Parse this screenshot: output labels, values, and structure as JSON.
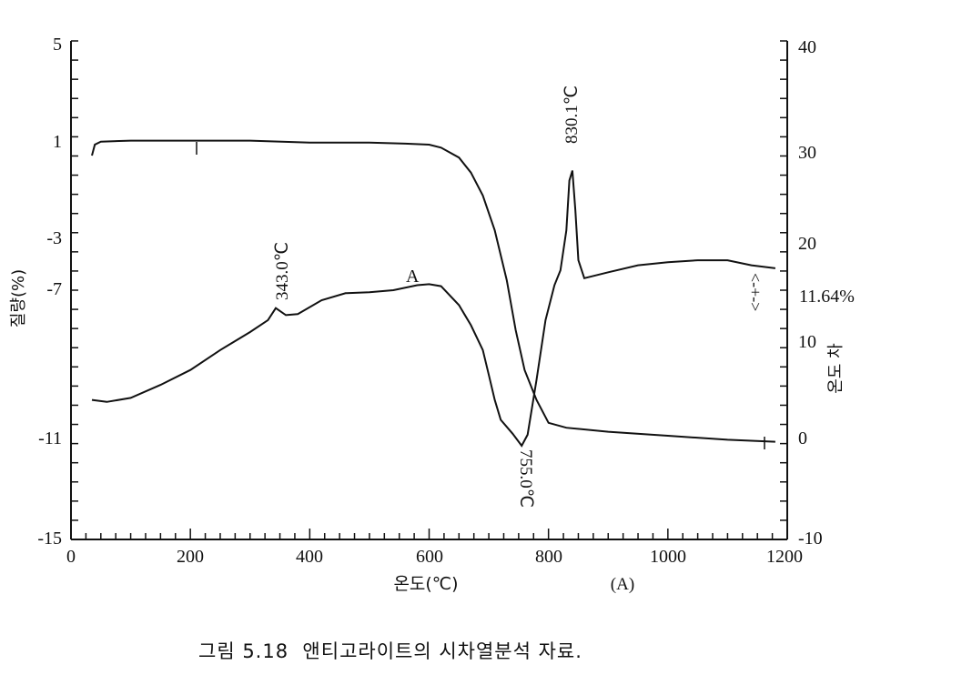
{
  "caption": "그림 5.18  앤티고라이트의 시차열분석 자료.",
  "chart_data": {
    "type": "line",
    "xlabel": "온도(℃)",
    "xlabel_suffix": "(A)",
    "ylabel_left": "질량(%)",
    "ylabel_right": "온도 차",
    "xlim": [
      0,
      1200
    ],
    "ylim_left": [
      -15,
      5
    ],
    "ylim_right": [
      -10,
      40
    ],
    "x_ticks": [
      "0",
      "200",
      "400",
      "600",
      "800",
      "1000",
      "1200"
    ],
    "y_left_ticks": [
      "5",
      "1",
      "-3",
      "-7",
      "-11",
      "-15"
    ],
    "y_right_ticks": [
      "40",
      "30",
      "20",
      "10",
      "0",
      "-10"
    ],
    "annotations": {
      "peak_343": "343.0℃",
      "peak_830": "830.1℃",
      "trough_755": "755.0℃",
      "label_A": "A",
      "mass_loss": "11.64%",
      "arrow": "<-+->"
    },
    "series": [
      {
        "curve": "TG (mass, right-axis scale)",
        "points": [
          [
            35,
            28.5
          ],
          [
            40,
            29.6
          ],
          [
            50,
            29.9
          ],
          [
            100,
            30.0
          ],
          [
            200,
            30.0
          ],
          [
            300,
            30.0
          ],
          [
            400,
            29.8
          ],
          [
            500,
            29.8
          ],
          [
            560,
            29.7
          ],
          [
            600,
            29.6
          ],
          [
            620,
            29.3
          ],
          [
            650,
            28.3
          ],
          [
            670,
            26.8
          ],
          [
            690,
            24.5
          ],
          [
            710,
            21.0
          ],
          [
            730,
            16.0
          ],
          [
            745,
            11.0
          ],
          [
            760,
            7.0
          ],
          [
            780,
            4.0
          ],
          [
            800,
            1.7
          ],
          [
            830,
            1.2
          ],
          [
            900,
            0.8
          ],
          [
            1000,
            0.4
          ],
          [
            1100,
            0.0
          ],
          [
            1180,
            -0.2
          ]
        ]
      },
      {
        "curve": "DTA (temperature difference, right-axis scale)",
        "points": [
          [
            35,
            4.0
          ],
          [
            60,
            3.8
          ],
          [
            100,
            4.2
          ],
          [
            150,
            5.5
          ],
          [
            200,
            7.0
          ],
          [
            250,
            9.0
          ],
          [
            300,
            10.8
          ],
          [
            330,
            12.0
          ],
          [
            343,
            13.2
          ],
          [
            360,
            12.5
          ],
          [
            380,
            12.6
          ],
          [
            420,
            14.0
          ],
          [
            460,
            14.7
          ],
          [
            500,
            14.8
          ],
          [
            540,
            15.0
          ],
          [
            580,
            15.5
          ],
          [
            600,
            15.6
          ],
          [
            620,
            15.4
          ],
          [
            650,
            13.5
          ],
          [
            670,
            11.5
          ],
          [
            690,
            9.0
          ],
          [
            700,
            6.5
          ],
          [
            710,
            4.0
          ],
          [
            720,
            2.0
          ],
          [
            740,
            0.6
          ],
          [
            755,
            -0.6
          ],
          [
            765,
            0.5
          ],
          [
            780,
            6.0
          ],
          [
            795,
            12.0
          ],
          [
            810,
            15.5
          ],
          [
            820,
            17.0
          ],
          [
            830,
            21.0
          ],
          [
            835,
            26.0
          ],
          [
            840,
            27.0
          ],
          [
            845,
            23.0
          ],
          [
            850,
            18.0
          ],
          [
            860,
            16.2
          ],
          [
            900,
            16.8
          ],
          [
            950,
            17.5
          ],
          [
            1000,
            17.8
          ],
          [
            1050,
            18.0
          ],
          [
            1100,
            18.0
          ],
          [
            1140,
            17.5
          ],
          [
            1180,
            17.2
          ]
        ]
      }
    ]
  }
}
